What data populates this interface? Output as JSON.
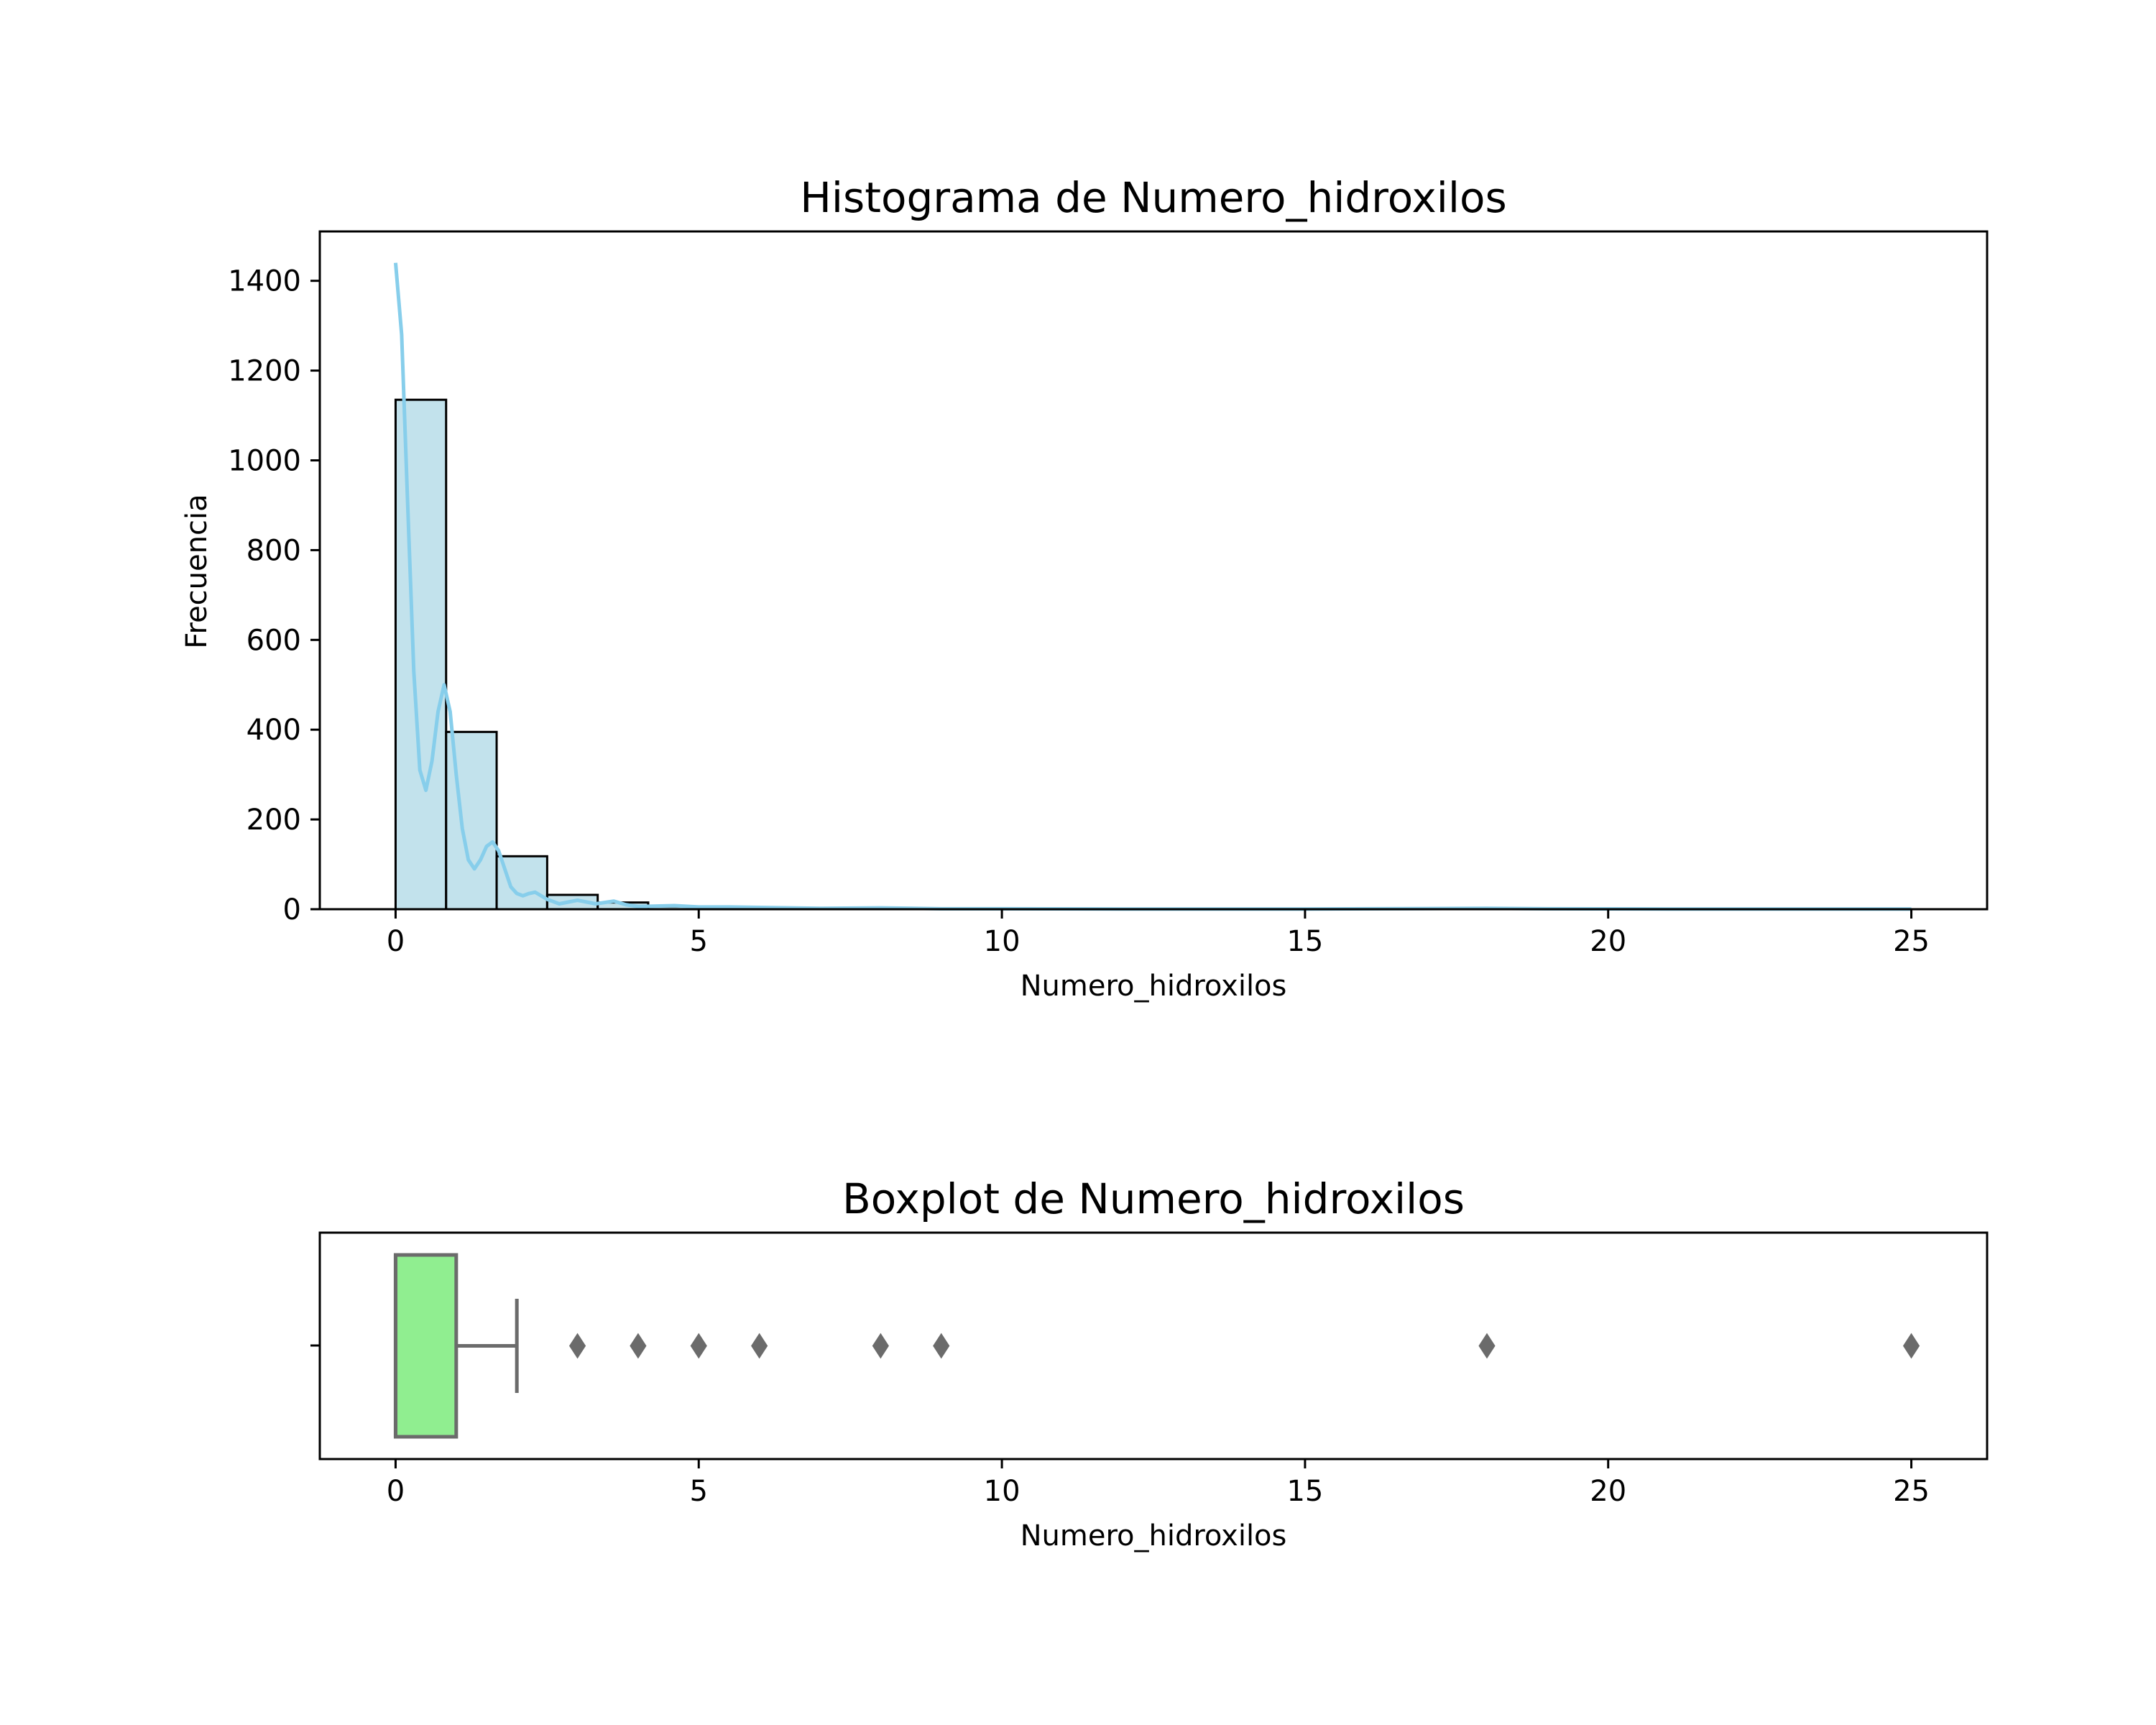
{
  "chart_data": [
    {
      "type": "bar",
      "title": "Histograma de Numero_hidroxilos",
      "xlabel": "Numero_hidroxilos",
      "ylabel": "Frecuencia",
      "xlim": [
        -1.25,
        26.25
      ],
      "ylim": [
        0,
        1510
      ],
      "xticks": [
        0,
        5,
        10,
        15,
        20,
        25
      ],
      "yticks": [
        0,
        200,
        400,
        600,
        800,
        1000,
        1200,
        1400
      ],
      "bin_width": 0.8333,
      "bins_start": [
        0,
        0.8333,
        1.6667,
        2.5,
        3.3333,
        4.1667,
        5.0,
        5.8333
      ],
      "values": [
        1135,
        395,
        118,
        32,
        15,
        6,
        5,
        3
      ],
      "bar_color": "#add8e6",
      "kde": {
        "color": "#87ceeb",
        "x": [
          0,
          0.1,
          0.2,
          0.3,
          0.4,
          0.5,
          0.6,
          0.7,
          0.8,
          0.9,
          1.0,
          1.1,
          1.2,
          1.3,
          1.4,
          1.5,
          1.6,
          1.7,
          1.8,
          1.9,
          2.0,
          2.1,
          2.2,
          2.3,
          2.4,
          2.5,
          2.7,
          3.0,
          3.3,
          3.6,
          3.8,
          4.0,
          4.3,
          4.6,
          5.0,
          5.5,
          6.0,
          6.5,
          7.0,
          8.0,
          9.0,
          10.0,
          12.0,
          15.0,
          17.0,
          18.0,
          19.0,
          21.0,
          23.0,
          25.0
        ],
        "y": [
          1440,
          1280,
          900,
          530,
          310,
          265,
          330,
          440,
          500,
          440,
          300,
          180,
          110,
          90,
          110,
          140,
          150,
          130,
          90,
          50,
          35,
          30,
          35,
          38,
          30,
          22,
          12,
          20,
          12,
          18,
          10,
          6,
          7,
          8,
          5,
          5,
          4,
          3,
          2,
          3,
          1,
          1,
          0.5,
          0.5,
          1.5,
          2,
          1,
          0.5,
          0.5,
          0.5
        ]
      }
    },
    {
      "type": "box",
      "title": "Boxplot de Numero_hidroxilos",
      "xlabel": "Numero_hidroxilos",
      "xlim": [
        -1.25,
        26.25
      ],
      "xticks": [
        0,
        5,
        10,
        15,
        20,
        25
      ],
      "q1": 0,
      "median": 0,
      "q3": 1,
      "whisker_low": 0,
      "whisker_high": 2,
      "outliers": [
        3,
        4,
        5,
        6,
        8,
        9,
        18,
        25
      ],
      "box_color": "#90ee90",
      "line_color": "#6b6b6b"
    }
  ]
}
